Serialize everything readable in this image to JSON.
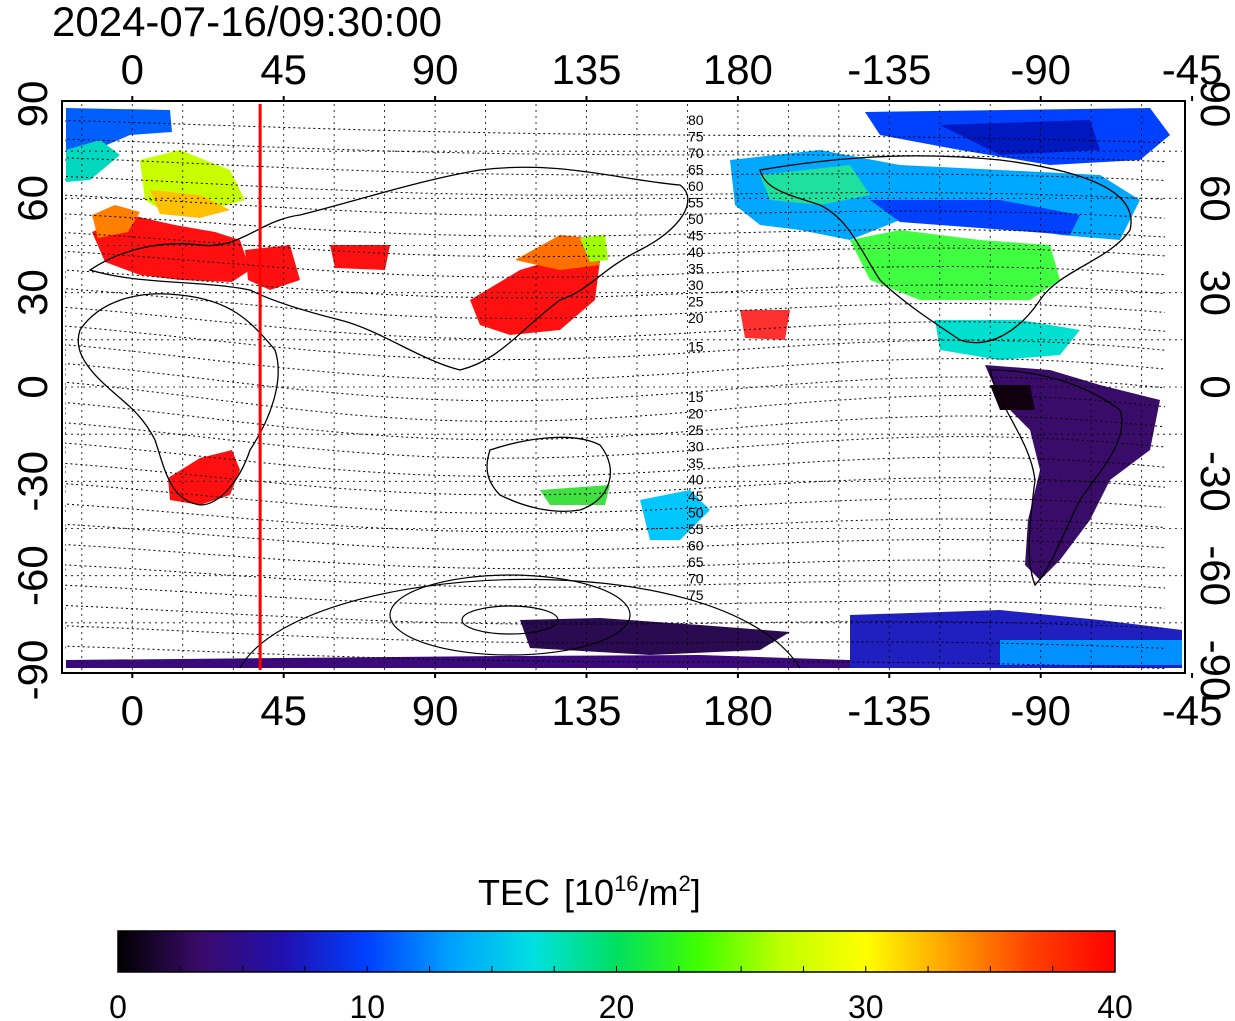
{
  "timestamp": "2024-07-16/09:30:00",
  "map": {
    "lon_range": [
      -20,
      312
    ],
    "lat_range": [
      -90,
      90
    ],
    "lon_ticks": [
      "0",
      "45",
      "90",
      "135",
      "180",
      "-135",
      "-90",
      "-45"
    ],
    "lat_ticks_left": [
      "90",
      "60",
      "30",
      "0",
      "-30",
      "-60",
      "-90"
    ],
    "lat_ticks_right": [
      "90",
      "60",
      "30",
      "0",
      "-30",
      "-60",
      "-90"
    ],
    "marker_lon": 38,
    "marker_color": "#ff0000",
    "grid": true,
    "contour_labels_upper": [
      "80",
      "75",
      "70",
      "65",
      "60",
      "55",
      "50",
      "45",
      "40",
      "35",
      "30",
      "25",
      "20",
      "15"
    ],
    "contour_labels_lower": [
      "15",
      "20",
      "25",
      "30",
      "35",
      "40",
      "45",
      "50",
      "55",
      "60",
      "65",
      "70",
      "75"
    ]
  },
  "colorbar": {
    "title": "TEC",
    "unit_base": "10",
    "unit_exp": "16",
    "unit_mid": "/m",
    "unit_exp2": "2",
    "unit_close": "]",
    "unit_open": "[",
    "min": 0,
    "max": 40,
    "ticks": [
      "0",
      "10",
      "20",
      "30",
      "40"
    ],
    "colors": [
      "#000000",
      "#3a0a6a",
      "#2010b0",
      "#0040ff",
      "#00a0ff",
      "#00e0e0",
      "#00e060",
      "#40ff00",
      "#c0ff00",
      "#ffff00",
      "#ffa000",
      "#ff4000",
      "#ff0000"
    ]
  }
}
